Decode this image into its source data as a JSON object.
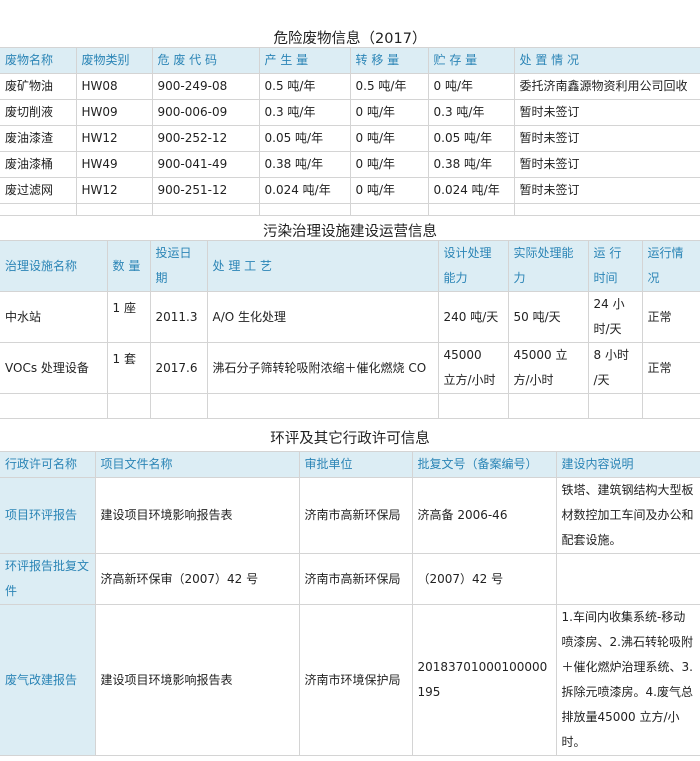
{
  "hazardous_waste": {
    "title": "危险废物信息（2017）",
    "headers": [
      "废物名称",
      "废物类别",
      "危 废 代 码",
      "产 生 量",
      "转 移 量",
      "贮 存 量",
      "处 置  情 况"
    ],
    "rows": [
      [
        "废矿物油",
        "HW08",
        "900-249-08",
        "0.5 吨/年",
        "0.5 吨/年",
        "0 吨/年",
        "委托济南鑫源物资利用公司回收"
      ],
      [
        "废切削液",
        "HW09",
        "900-006-09",
        "0.3 吨/年",
        "0 吨/年",
        "0.3 吨/年",
        "暂时未签订"
      ],
      [
        "废油漆渣",
        "HW12",
        "900-252-12",
        "0.05 吨/年",
        "0 吨/年",
        "0.05 吨/年",
        "暂时未签订"
      ],
      [
        "废油漆桶",
        "HW49",
        "900-041-49",
        "0.38 吨/年",
        "0 吨/年",
        "0.38 吨/年",
        "暂时未签订"
      ],
      [
        "废过滤网",
        "HW12",
        "900-251-12",
        "0.024 吨/年",
        "0 吨/年",
        "0.024 吨/年",
        "暂时未签订"
      ]
    ]
  },
  "facilities": {
    "title": "污染治理设施建设运营信息",
    "headers": [
      "治理设施名称",
      "数 量",
      "投运日期",
      "处 理 工 艺",
      "设计处理能力",
      "实际处理能力",
      "运 行 时间",
      "运行情况"
    ],
    "rows": [
      [
        "中水站",
        "1 座",
        "2011.3",
        "A/O 生化处理",
        "240 吨/天",
        "50 吨/天",
        "24 小时/天",
        "正常"
      ],
      [
        "VOCs 处理设备",
        "1 套",
        "2017.6",
        "沸石分子筛转轮吸附浓缩＋催化燃烧 CO",
        "45000　立方/小时",
        "45000 立方/小时",
        "8 小时 /天",
        "正常"
      ]
    ]
  },
  "permits": {
    "title": "环评及其它行政许可信息",
    "headers": [
      "行政许可名称",
      "项目文件名称",
      "审批单位",
      "批复文号（备案编号）",
      "建设内容说明"
    ],
    "rows": [
      [
        "项目环评报告",
        "建设项目环境影响报告表",
        "济南市高新环保局",
        "济高备 2006-46",
        "铁塔、建筑钢结构大型板材数控加工车间及办公和配套设施。"
      ],
      [
        "环评报告批复文件",
        "济高新环保审（2007）42 号",
        "济南市高新环保局",
        "（2007）42 号",
        ""
      ],
      [
        "废气改建报告",
        "建设项目环境影响报告表",
        "济南市环境保护局",
        "20183701000100000195",
        "1.车间内收集系统-移动喷漆房、2.沸石转轮吸附＋催化燃炉治理系统、3.拆除元喷漆房。4.废气总排放量45000 立方/小时。"
      ]
    ]
  }
}
